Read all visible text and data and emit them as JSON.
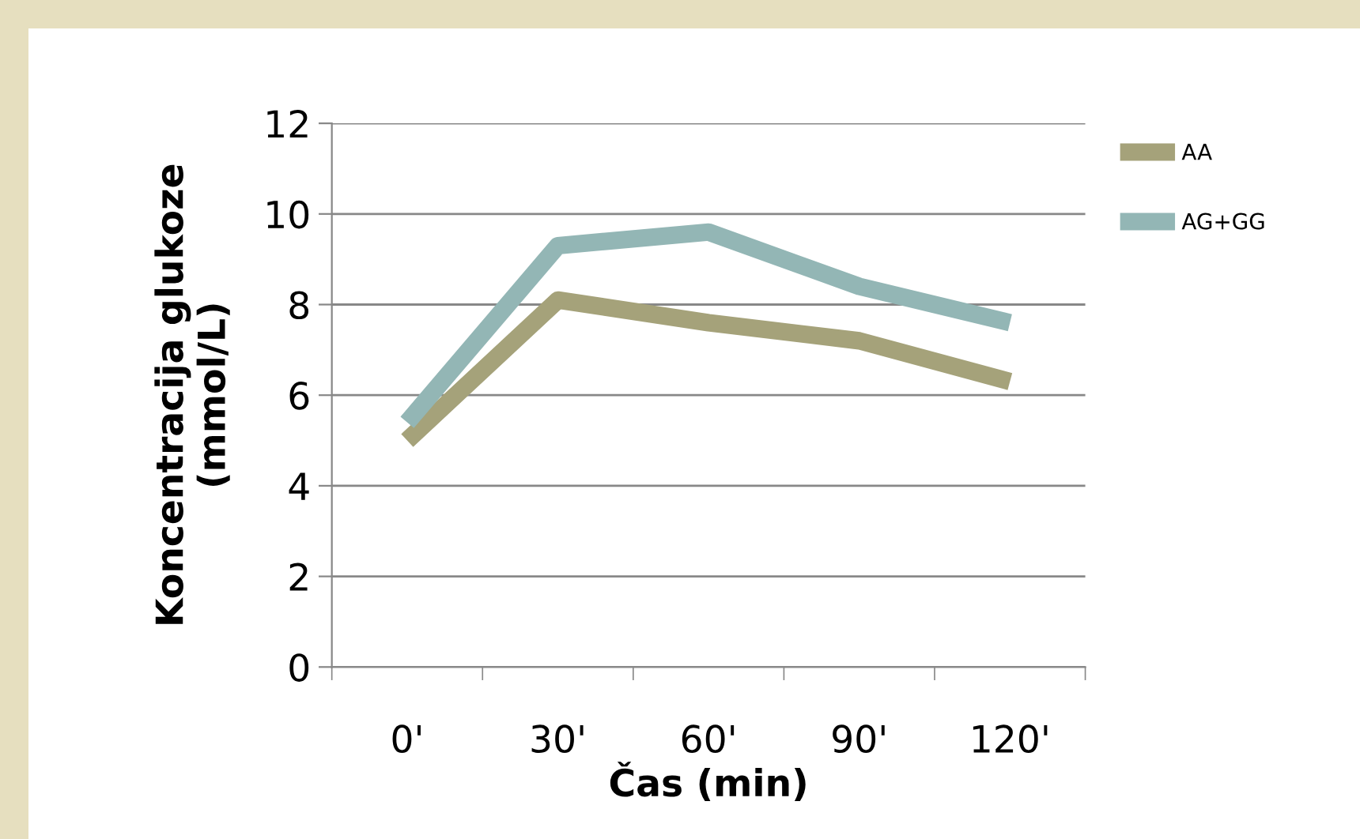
{
  "chart_data": {
    "type": "line",
    "xlabel": "Čas (min)",
    "ylabel": "Koncentracija glukoze\n(mmol/L)",
    "categories": [
      "0'",
      "30'",
      "60'",
      "90'",
      "120'"
    ],
    "series": [
      {
        "name": "AA",
        "color": "#a5a27a",
        "values": [
          5.0,
          8.1,
          7.6,
          7.2,
          6.3
        ]
      },
      {
        "name": "AG+GG",
        "color": "#93b6b5",
        "values": [
          5.4,
          9.3,
          9.6,
          8.4,
          7.6
        ]
      }
    ],
    "ylim": [
      0,
      12
    ],
    "yticks": [
      0,
      2,
      4,
      6,
      8,
      10,
      12
    ],
    "grid": "y",
    "legend": "right",
    "marker": "none",
    "line_style": "solid"
  }
}
